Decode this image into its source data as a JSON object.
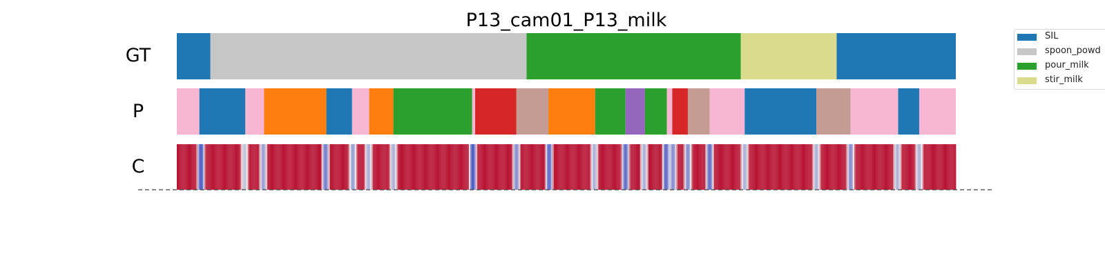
{
  "chart_data": {
    "type": "heatmap",
    "title": "P13_cam01_P13_milk",
    "rows": [
      "GT",
      "P",
      "C"
    ],
    "x_range": [
      0,
      1
    ],
    "colors": {
      "SIL": "#1f77b4",
      "spoon_powder": "#c7c7c7",
      "pour_milk": "#2ca02c",
      "stir_milk": "#dbdb8d",
      "orange_class": "#ff7f0e",
      "red_class": "#d62728",
      "brown_class": "#c49c94",
      "purple_class": "#9467bd",
      "pink_class": "#f7b6d2",
      "confidence_high": "#b40426",
      "confidence_low": "#3b4cc0"
    },
    "gt_segments": [
      {
        "start": 0.0,
        "end": 0.043,
        "label": "SIL"
      },
      {
        "start": 0.043,
        "end": 0.449,
        "label": "spoon_powder"
      },
      {
        "start": 0.449,
        "end": 0.724,
        "label": "pour_milk"
      },
      {
        "start": 0.724,
        "end": 0.847,
        "label": "stir_milk"
      },
      {
        "start": 0.847,
        "end": 1.0,
        "label": "SIL"
      }
    ],
    "p_segments": [
      {
        "start": 0.0,
        "end": 0.029,
        "label": "pink_class"
      },
      {
        "start": 0.029,
        "end": 0.088,
        "label": "SIL"
      },
      {
        "start": 0.088,
        "end": 0.112,
        "label": "pink_class"
      },
      {
        "start": 0.112,
        "end": 0.192,
        "label": "orange_class"
      },
      {
        "start": 0.192,
        "end": 0.225,
        "label": "SIL"
      },
      {
        "start": 0.225,
        "end": 0.247,
        "label": "pink_class"
      },
      {
        "start": 0.247,
        "end": 0.278,
        "label": "orange_class"
      },
      {
        "start": 0.278,
        "end": 0.379,
        "label": "pour_milk"
      },
      {
        "start": 0.379,
        "end": 0.383,
        "label": "pink_class"
      },
      {
        "start": 0.383,
        "end": 0.436,
        "label": "red_class"
      },
      {
        "start": 0.436,
        "end": 0.477,
        "label": "brown_class"
      },
      {
        "start": 0.477,
        "end": 0.537,
        "label": "orange_class"
      },
      {
        "start": 0.537,
        "end": 0.576,
        "label": "pour_milk"
      },
      {
        "start": 0.576,
        "end": 0.601,
        "label": "purple_class"
      },
      {
        "start": 0.601,
        "end": 0.629,
        "label": "pour_milk"
      },
      {
        "start": 0.629,
        "end": 0.636,
        "label": "pink_class"
      },
      {
        "start": 0.636,
        "end": 0.656,
        "label": "red_class"
      },
      {
        "start": 0.656,
        "end": 0.684,
        "label": "brown_class"
      },
      {
        "start": 0.684,
        "end": 0.729,
        "label": "pink_class"
      },
      {
        "start": 0.729,
        "end": 0.821,
        "label": "SIL"
      },
      {
        "start": 0.821,
        "end": 0.865,
        "label": "brown_class"
      },
      {
        "start": 0.865,
        "end": 0.926,
        "label": "pink_class"
      },
      {
        "start": 0.926,
        "end": 0.953,
        "label": "SIL"
      },
      {
        "start": 0.953,
        "end": 1.0,
        "label": "pink_class"
      }
    ],
    "confidence_dips": [
      {
        "x": 0.031,
        "level": 0.05
      },
      {
        "x": 0.087,
        "level": 0.35
      },
      {
        "x": 0.111,
        "level": 0.25
      },
      {
        "x": 0.191,
        "level": 0.15
      },
      {
        "x": 0.226,
        "level": 0.25
      },
      {
        "x": 0.246,
        "level": 0.3
      },
      {
        "x": 0.278,
        "level": 0.3
      },
      {
        "x": 0.38,
        "level": 0.05
      },
      {
        "x": 0.436,
        "level": 0.2
      },
      {
        "x": 0.478,
        "level": 0.1
      },
      {
        "x": 0.536,
        "level": 0.3
      },
      {
        "x": 0.576,
        "level": 0.1
      },
      {
        "x": 0.6,
        "level": 0.3
      },
      {
        "x": 0.628,
        "level": 0.1
      },
      {
        "x": 0.637,
        "level": 0.2
      },
      {
        "x": 0.656,
        "level": 0.2
      },
      {
        "x": 0.684,
        "level": 0.1
      },
      {
        "x": 0.729,
        "level": 0.3
      },
      {
        "x": 0.821,
        "level": 0.3
      },
      {
        "x": 0.865,
        "level": 0.2
      },
      {
        "x": 0.925,
        "level": 0.3
      },
      {
        "x": 0.953,
        "level": 0.3
      }
    ],
    "legend": [
      {
        "label": "SIL",
        "color": "#1f77b4"
      },
      {
        "label": "spoon_powd",
        "color": "#c7c7c7"
      },
      {
        "label": "pour_milk",
        "color": "#2ca02c"
      },
      {
        "label": "stir_milk",
        "color": "#dbdb8d"
      }
    ],
    "legend_position": "top-right",
    "grid": false
  }
}
